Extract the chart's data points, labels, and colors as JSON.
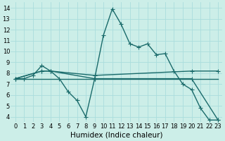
{
  "background_color": "#cceee8",
  "grid_color": "#aadddd",
  "line_color": "#1a6b6b",
  "markersize": 4,
  "linewidth": 1.0,
  "xlabel": "Humidex (Indice chaleur)",
  "xlabel_fontsize": 7.5,
  "tick_fontsize": 6,
  "xlim": [
    -0.5,
    23.5
  ],
  "ylim": [
    3.5,
    14.5
  ],
  "yticks": [
    4,
    5,
    6,
    7,
    8,
    9,
    10,
    11,
    12,
    13,
    14
  ],
  "xticks": [
    0,
    1,
    2,
    3,
    4,
    5,
    6,
    7,
    8,
    9,
    10,
    11,
    12,
    13,
    14,
    15,
    16,
    17,
    18,
    19,
    20,
    21,
    22,
    23
  ],
  "series": [
    {
      "x": [
        0,
        1,
        2,
        3,
        4,
        5,
        6,
        7,
        8,
        9,
        10,
        11,
        12,
        13,
        14,
        15,
        16,
        17,
        18,
        19,
        20,
        21,
        22,
        23
      ],
      "y": [
        7.5,
        7.5,
        7.8,
        8.7,
        8.2,
        7.5,
        6.3,
        5.5,
        4.0,
        7.5,
        11.5,
        13.9,
        12.5,
        10.7,
        10.4,
        10.7,
        9.7,
        9.8,
        8.2,
        7.0,
        6.5,
        4.8,
        3.7,
        3.7
      ],
      "marker": true
    },
    {
      "x": [
        0,
        3,
        4,
        9,
        20,
        23
      ],
      "y": [
        7.5,
        8.2,
        8.2,
        7.8,
        8.2,
        8.2
      ],
      "marker": true
    },
    {
      "x": [
        0,
        3,
        4,
        9,
        20,
        23
      ],
      "y": [
        7.5,
        8.2,
        8.2,
        7.5,
        7.5,
        3.7
      ],
      "marker": true
    },
    {
      "x": [
        0,
        23
      ],
      "y": [
        7.5,
        7.5
      ],
      "marker": false
    }
  ]
}
